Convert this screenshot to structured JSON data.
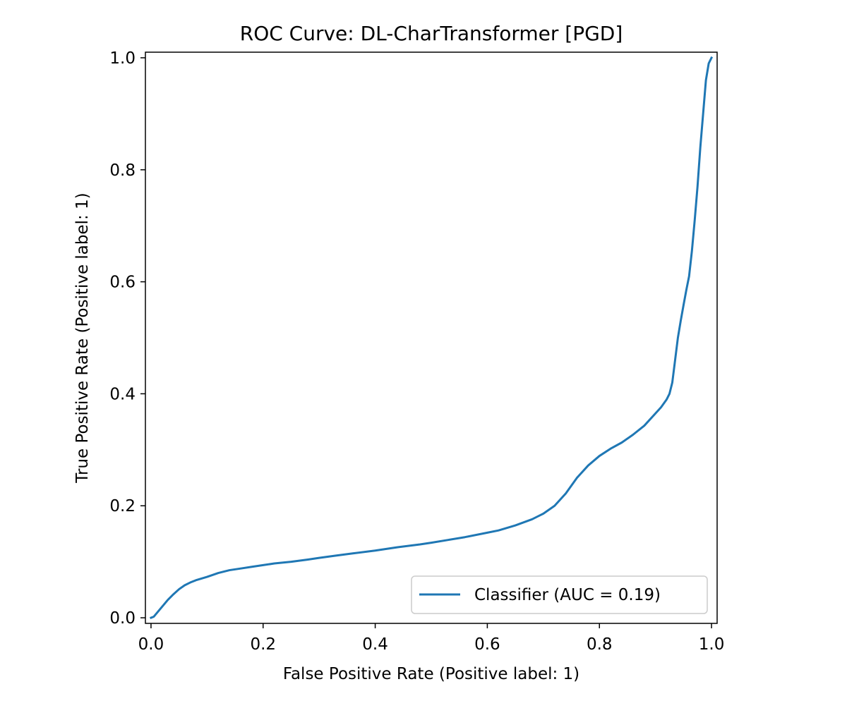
{
  "chart_data": {
    "type": "line",
    "title": "ROC Curve: DL-CharTransformer [PGD]",
    "xlabel": "False Positive Rate (Positive label: 1)",
    "ylabel": "True Positive Rate (Positive label: 1)",
    "xlim": [
      -0.01,
      1.01
    ],
    "ylim": [
      -0.01,
      1.01
    ],
    "xticks": [
      0.0,
      0.2,
      0.4,
      0.6,
      0.8,
      1.0
    ],
    "xtick_labels": [
      "0.0",
      "0.2",
      "0.4",
      "0.6",
      "0.8",
      "1.0"
    ],
    "yticks": [
      0.0,
      0.2,
      0.4,
      0.6,
      0.8,
      1.0
    ],
    "ytick_labels": [
      "0.0",
      "0.2",
      "0.4",
      "0.6",
      "0.8",
      "1.0"
    ],
    "grid": false,
    "legend_position": "lower-right",
    "series": [
      {
        "name": "Classifier (AUC = 0.19)",
        "color": "#1f77b4",
        "x": [
          0.0,
          0.005,
          0.01,
          0.02,
          0.03,
          0.04,
          0.05,
          0.06,
          0.07,
          0.08,
          0.09,
          0.1,
          0.12,
          0.14,
          0.16,
          0.18,
          0.2,
          0.22,
          0.25,
          0.28,
          0.3,
          0.33,
          0.36,
          0.4,
          0.44,
          0.48,
          0.5,
          0.53,
          0.56,
          0.6,
          0.62,
          0.65,
          0.68,
          0.7,
          0.72,
          0.74,
          0.76,
          0.78,
          0.8,
          0.82,
          0.84,
          0.86,
          0.88,
          0.9,
          0.91,
          0.92,
          0.925,
          0.93,
          0.935,
          0.94,
          0.945,
          0.95,
          0.955,
          0.96,
          0.965,
          0.97,
          0.975,
          0.98,
          0.985,
          0.99,
          0.995,
          1.0
        ],
        "y": [
          0.0,
          0.002,
          0.008,
          0.02,
          0.032,
          0.042,
          0.051,
          0.058,
          0.063,
          0.067,
          0.07,
          0.073,
          0.08,
          0.085,
          0.088,
          0.091,
          0.094,
          0.097,
          0.1,
          0.104,
          0.107,
          0.111,
          0.115,
          0.12,
          0.126,
          0.131,
          0.134,
          0.139,
          0.144,
          0.152,
          0.156,
          0.165,
          0.176,
          0.186,
          0.2,
          0.222,
          0.25,
          0.272,
          0.289,
          0.302,
          0.313,
          0.327,
          0.343,
          0.365,
          0.376,
          0.39,
          0.4,
          0.42,
          0.46,
          0.5,
          0.53,
          0.558,
          0.585,
          0.61,
          0.655,
          0.71,
          0.77,
          0.84,
          0.9,
          0.96,
          0.99,
          1.0
        ]
      }
    ]
  }
}
